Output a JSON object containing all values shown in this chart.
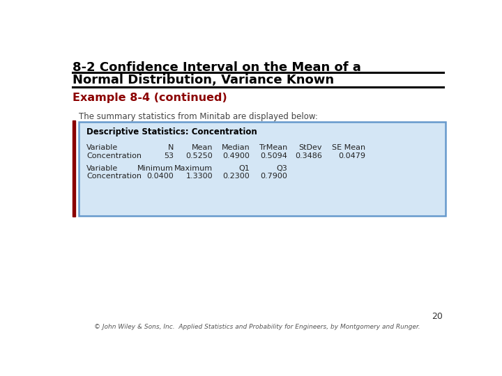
{
  "title_line1": "8-2 Confidence Interval on the Mean of a",
  "title_line2": "Normal Distribution, Variance Known",
  "section_header": "Example 8-4 (continued)",
  "intro_text": "The summary statistics from Minitab are displayed below:",
  "box_header": "Descriptive Statistics: Concentration",
  "table_row1_headers": [
    "Variable",
    "N",
    "Mean",
    "Median",
    "TrMean",
    "StDev",
    "SE Mean"
  ],
  "table_row1_data": [
    "Concentration",
    "53",
    "0.5250",
    "0.4900",
    "0.5094",
    "0.3486",
    "0.0479"
  ],
  "table_row2_headers": [
    "Variable",
    "Minimum",
    "Maximum",
    "Q1",
    "Q3",
    "",
    ""
  ],
  "table_row2_data": [
    "Concentration",
    "0.0400",
    "1.3300",
    "0.2300",
    "0.7900",
    "",
    ""
  ],
  "page_number": "20",
  "footer": "© John Wiley & Sons, Inc.  Applied Statistics and Probability for Engineers, by Montgomery and Runger.",
  "title_color": "#000000",
  "section_color": "#8B0000",
  "box_border_color": "#6699CC",
  "box_bg_color": "#D4E6F5",
  "left_bar_color": "#8B0000",
  "background_color": "#FFFFFF"
}
